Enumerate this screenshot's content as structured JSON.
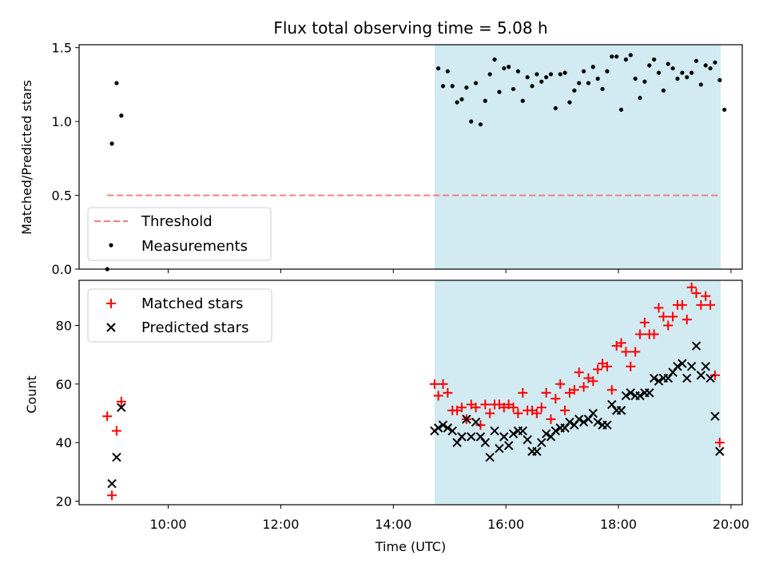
{
  "colors": {
    "threshold": "#f08080",
    "measurement": "#000000",
    "matched": "#ff0000",
    "predicted": "#000000",
    "observing_window": "#add8e6"
  },
  "chart_data": [
    {
      "type": "scatter",
      "title": "Flux total observing time = 5.08 h",
      "xlabel": "",
      "ylabel": "Matched/Predicted stars",
      "xlim": [
        "08:25",
        "20:12"
      ],
      "ylim": [
        0,
        1.52
      ],
      "yticks": [
        "0.0",
        "0.5",
        "1.0",
        "1.5"
      ],
      "grid": false,
      "legend_position": "lower-left",
      "observing_window": [
        "14:44",
        "19:49"
      ],
      "threshold": {
        "name": "Threshold",
        "value": 0.5,
        "x_start": "08:55",
        "x_end": "19:49",
        "style": "dashed"
      },
      "series": [
        {
          "name": "Measurements",
          "points": [
            [
              "08:55",
              0.0
            ],
            [
              "09:00",
              0.85
            ],
            [
              "09:05",
              1.26
            ],
            [
              "09:10",
              1.04
            ],
            [
              "14:48",
              1.36
            ],
            [
              "14:53",
              1.24
            ],
            [
              "14:58",
              1.34
            ],
            [
              "15:03",
              1.24
            ],
            [
              "15:08",
              1.13
            ],
            [
              "15:13",
              1.15
            ],
            [
              "15:18",
              1.23
            ],
            [
              "15:23",
              1.0
            ],
            [
              "15:28",
              1.26
            ],
            [
              "15:33",
              0.98
            ],
            [
              "15:38",
              1.14
            ],
            [
              "15:43",
              1.32
            ],
            [
              "15:48",
              1.42
            ],
            [
              "15:53",
              1.2
            ],
            [
              "15:58",
              1.36
            ],
            [
              "16:03",
              1.37
            ],
            [
              "16:08",
              1.22
            ],
            [
              "16:13",
              1.34
            ],
            [
              "16:18",
              1.14
            ],
            [
              "16:23",
              1.3
            ],
            [
              "16:28",
              1.24
            ],
            [
              "16:33",
              1.32
            ],
            [
              "16:38",
              1.27
            ],
            [
              "16:43",
              1.3
            ],
            [
              "16:48",
              1.32
            ],
            [
              "16:53",
              1.09
            ],
            [
              "16:58",
              1.32
            ],
            [
              "17:03",
              1.33
            ],
            [
              "17:08",
              1.13
            ],
            [
              "17:13",
              1.21
            ],
            [
              "17:18",
              1.26
            ],
            [
              "17:23",
              1.34
            ],
            [
              "17:28",
              1.26
            ],
            [
              "17:33",
              1.37
            ],
            [
              "17:38",
              1.29
            ],
            [
              "17:43",
              1.22
            ],
            [
              "17:48",
              1.34
            ],
            [
              "17:53",
              1.44
            ],
            [
              "17:58",
              1.44
            ],
            [
              "18:03",
              1.08
            ],
            [
              "18:08",
              1.42
            ],
            [
              "18:13",
              1.45
            ],
            [
              "18:18",
              1.29
            ],
            [
              "18:23",
              1.16
            ],
            [
              "18:28",
              1.27
            ],
            [
              "18:33",
              1.38
            ],
            [
              "18:38",
              1.42
            ],
            [
              "18:43",
              1.33
            ],
            [
              "18:48",
              1.21
            ],
            [
              "18:53",
              1.39
            ],
            [
              "18:58",
              1.36
            ],
            [
              "19:03",
              1.29
            ],
            [
              "19:08",
              1.33
            ],
            [
              "19:13",
              1.3
            ],
            [
              "19:18",
              1.33
            ],
            [
              "19:23",
              1.41
            ],
            [
              "19:28",
              1.25
            ],
            [
              "19:33",
              1.38
            ],
            [
              "19:38",
              1.36
            ],
            [
              "19:43",
              1.4
            ],
            [
              "19:48",
              1.28
            ],
            [
              "19:53",
              1.08
            ]
          ]
        }
      ]
    },
    {
      "type": "scatter",
      "title": "",
      "xlabel": "Time (UTC)",
      "ylabel": "Count",
      "xlim": [
        "08:25",
        "20:12"
      ],
      "ylim": [
        18.8,
        95.4
      ],
      "xticks": [
        "10:00",
        "12:00",
        "14:00",
        "16:00",
        "18:00",
        "20:00"
      ],
      "yticks": [
        "20",
        "40",
        "60",
        "80"
      ],
      "grid": false,
      "legend_position": "top-left",
      "observing_window": [
        "14:44",
        "19:49"
      ],
      "series": [
        {
          "name": "Matched stars",
          "marker": "+",
          "points": [
            [
              "08:55",
              49
            ],
            [
              "09:00",
              22
            ],
            [
              "09:05",
              44
            ],
            [
              "09:10",
              54
            ],
            [
              "14:44",
              60
            ],
            [
              "14:48",
              56
            ],
            [
              "14:53",
              60
            ],
            [
              "14:58",
              57
            ],
            [
              "15:03",
              51
            ],
            [
              "15:08",
              51
            ],
            [
              "15:13",
              52
            ],
            [
              "15:18",
              48
            ],
            [
              "15:23",
              53
            ],
            [
              "15:28",
              52
            ],
            [
              "15:33",
              46
            ],
            [
              "15:38",
              53
            ],
            [
              "15:43",
              50
            ],
            [
              "15:48",
              53
            ],
            [
              "15:53",
              53
            ],
            [
              "15:58",
              52
            ],
            [
              "16:03",
              53
            ],
            [
              "16:08",
              52
            ],
            [
              "16:13",
              50
            ],
            [
              "16:18",
              57
            ],
            [
              "16:23",
              51
            ],
            [
              "16:28",
              51
            ],
            [
              "16:33",
              50
            ],
            [
              "16:38",
              52
            ],
            [
              "16:43",
              57
            ],
            [
              "16:48",
              48
            ],
            [
              "16:53",
              55
            ],
            [
              "16:58",
              60
            ],
            [
              "17:03",
              51
            ],
            [
              "17:08",
              57
            ],
            [
              "17:13",
              58
            ],
            [
              "17:18",
              64
            ],
            [
              "17:23",
              59
            ],
            [
              "17:28",
              62
            ],
            [
              "17:33",
              61
            ],
            [
              "17:38",
              65
            ],
            [
              "17:43",
              67
            ],
            [
              "17:48",
              66
            ],
            [
              "17:53",
              58
            ],
            [
              "17:58",
              73
            ],
            [
              "18:03",
              74
            ],
            [
              "18:08",
              71
            ],
            [
              "18:13",
              66
            ],
            [
              "18:18",
              71
            ],
            [
              "18:23",
              77
            ],
            [
              "18:28",
              81
            ],
            [
              "18:33",
              77
            ],
            [
              "18:38",
              77
            ],
            [
              "18:43",
              86
            ],
            [
              "18:48",
              83
            ],
            [
              "18:53",
              80
            ],
            [
              "18:58",
              83
            ],
            [
              "19:03",
              87
            ],
            [
              "19:08",
              87
            ],
            [
              "19:13",
              82
            ],
            [
              "19:18",
              93
            ],
            [
              "19:23",
              91
            ],
            [
              "19:28",
              87
            ],
            [
              "19:33",
              90
            ],
            [
              "19:38",
              87
            ],
            [
              "19:43",
              63
            ],
            [
              "19:48",
              40
            ]
          ]
        },
        {
          "name": "Predicted stars",
          "marker": "x",
          "points": [
            [
              "09:00",
              26
            ],
            [
              "09:05",
              35
            ],
            [
              "09:10",
              52
            ],
            [
              "14:44",
              44
            ],
            [
              "14:48",
              45
            ],
            [
              "14:53",
              46
            ],
            [
              "14:58",
              45
            ],
            [
              "15:03",
              44
            ],
            [
              "15:08",
              40
            ],
            [
              "15:13",
              42
            ],
            [
              "15:18",
              48
            ],
            [
              "15:23",
              42
            ],
            [
              "15:28",
              47
            ],
            [
              "15:33",
              42
            ],
            [
              "15:38",
              40
            ],
            [
              "15:43",
              35
            ],
            [
              "15:48",
              44
            ],
            [
              "15:53",
              38
            ],
            [
              "15:58",
              42
            ],
            [
              "16:03",
              39
            ],
            [
              "16:08",
              43
            ],
            [
              "16:13",
              44
            ],
            [
              "16:18",
              44
            ],
            [
              "16:23",
              41
            ],
            [
              "16:28",
              37
            ],
            [
              "16:33",
              37
            ],
            [
              "16:38",
              40
            ],
            [
              "16:43",
              43
            ],
            [
              "16:48",
              42
            ],
            [
              "16:53",
              44
            ],
            [
              "16:58",
              45
            ],
            [
              "17:03",
              45
            ],
            [
              "17:08",
              47
            ],
            [
              "17:13",
              46
            ],
            [
              "17:18",
              48
            ],
            [
              "17:23",
              47
            ],
            [
              "17:28",
              48
            ],
            [
              "17:33",
              50
            ],
            [
              "17:38",
              47
            ],
            [
              "17:43",
              46
            ],
            [
              "17:48",
              46
            ],
            [
              "17:53",
              53
            ],
            [
              "17:58",
              51
            ],
            [
              "18:03",
              51
            ],
            [
              "18:08",
              56
            ],
            [
              "18:13",
              57
            ],
            [
              "18:18",
              56
            ],
            [
              "18:23",
              56
            ],
            [
              "18:28",
              57
            ],
            [
              "18:33",
              57
            ],
            [
              "18:38",
              62
            ],
            [
              "18:43",
              61
            ],
            [
              "18:48",
              62
            ],
            [
              "18:53",
              62
            ],
            [
              "18:58",
              64
            ],
            [
              "19:03",
              66
            ],
            [
              "19:08",
              67
            ],
            [
              "19:13",
              62
            ],
            [
              "19:18",
              66
            ],
            [
              "19:23",
              73
            ],
            [
              "19:28",
              63
            ],
            [
              "19:33",
              66
            ],
            [
              "19:38",
              62
            ],
            [
              "19:43",
              49
            ],
            [
              "19:48",
              37
            ]
          ]
        }
      ]
    }
  ]
}
